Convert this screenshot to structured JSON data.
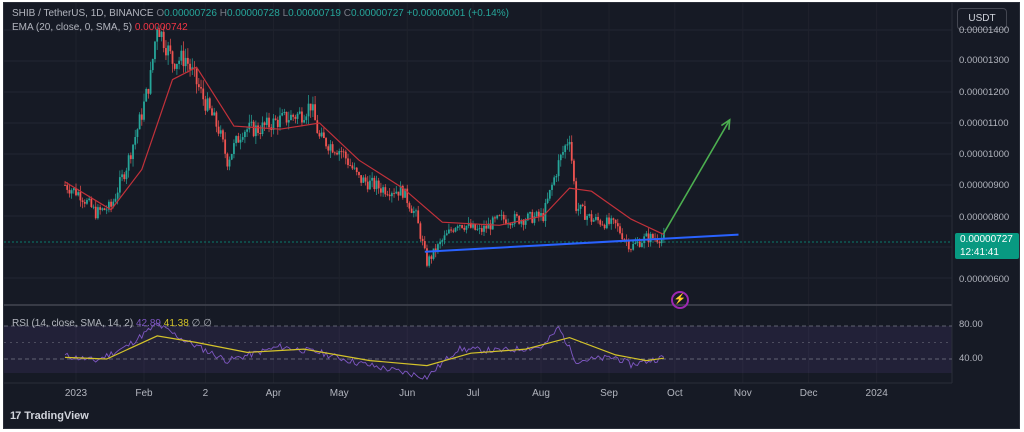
{
  "header": {
    "symbol": "SHIB / TetherUS, 1D, BINANCE",
    "o_label": "O",
    "o": "0.00000726",
    "h_label": "H",
    "h": "0.00000728",
    "l_label": "L",
    "l": "0.00000719",
    "c_label": "C",
    "c": "0.00000727",
    "change": "+0.00000001 (+0.14%)",
    "ema_label": "EMA (20, close, 0, SMA, 5)",
    "ema_value": "0.00000742",
    "currency": "USDT"
  },
  "rsi_legend": {
    "label": "RSI (14, close, SMA, 14, 2)",
    "value1": "42.89",
    "value2": "41.38",
    "extra1": "∅",
    "extra2": "∅"
  },
  "price_badge": {
    "price": "0.00000727",
    "countdown": "12:41:41"
  },
  "logo": "TradingView",
  "colors": {
    "background": "#161a25",
    "up": "#26a69a",
    "down": "#ef5350",
    "ema": "#c2313a",
    "support": "#2962ff",
    "arrow": "#4caf50",
    "rsi_line": "#7e57c2",
    "rsi_ma": "#d4c32a"
  },
  "chart_data": {
    "type": "candlestick",
    "symbol": "SHIB / TetherUS",
    "x_tick_labels": [
      "2023",
      "Feb",
      "2",
      "Apr",
      "May",
      "Jun",
      "Jul",
      "Aug",
      "Sep",
      "Oct",
      "Nov",
      "Dec",
      "2024"
    ],
    "y_tick_labels": [
      "0.00001400",
      "0.00001300",
      "0.00001200",
      "0.00001100",
      "0.00001000",
      "0.00000900",
      "0.00000800",
      "0.00000600"
    ],
    "ylim": [
      5.6e-06,
      1.45e-05
    ],
    "price_path": [
      [
        "2022-12-27",
        9e-06
      ],
      [
        "2023-01-03",
        8.7e-06
      ],
      [
        "2023-01-10",
        8.1e-06
      ],
      [
        "2023-01-17",
        8.3e-06
      ],
      [
        "2023-01-24",
        9.6e-06
      ],
      [
        "2023-01-31",
        1.13e-05
      ],
      [
        "2023-02-04",
        1.25e-05
      ],
      [
        "2023-02-07",
        1.42e-05
      ],
      [
        "2023-02-14",
        1.3e-05
      ],
      [
        "2023-02-20",
        1.31e-05
      ],
      [
        "2023-02-28",
        1.18e-05
      ],
      [
        "2023-03-07",
        1.08e-05
      ],
      [
        "2023-03-11",
        9.8e-06
      ],
      [
        "2023-03-18",
        1.08e-05
      ],
      [
        "2023-03-25",
        1.08e-05
      ],
      [
        "2023-04-04",
        1.11e-05
      ],
      [
        "2023-04-14",
        1.13e-05
      ],
      [
        "2023-04-18",
        1.16e-05
      ],
      [
        "2023-04-22",
        1.05e-05
      ],
      [
        "2023-05-02",
        1.01e-05
      ],
      [
        "2023-05-10",
        9.2e-06
      ],
      [
        "2023-05-20",
        8.9e-06
      ],
      [
        "2023-05-30",
        8.8e-06
      ],
      [
        "2023-06-05",
        8e-06
      ],
      [
        "2023-06-10",
        6.5e-06
      ],
      [
        "2023-06-17",
        7.2e-06
      ],
      [
        "2023-06-24",
        7.8e-06
      ],
      [
        "2023-07-04",
        7.5e-06
      ],
      [
        "2023-07-13",
        7.9e-06
      ],
      [
        "2023-07-23",
        7.9e-06
      ],
      [
        "2023-08-02",
        8e-06
      ],
      [
        "2023-08-09",
        9.7e-06
      ],
      [
        "2023-08-14",
        1.06e-05
      ],
      [
        "2023-08-17",
        8.3e-06
      ],
      [
        "2023-08-24",
        7.9e-06
      ],
      [
        "2023-09-04",
        7.7e-06
      ],
      [
        "2023-09-11",
        7e-06
      ],
      [
        "2023-09-18",
        7.3e-06
      ],
      [
        "2023-09-26",
        7.3e-06
      ]
    ],
    "ema_path": [
      [
        "2022-12-27",
        9.1e-06
      ],
      [
        "2023-01-17",
        8.2e-06
      ],
      [
        "2023-01-31",
        9.5e-06
      ],
      [
        "2023-02-14",
        1.24e-05
      ],
      [
        "2023-02-25",
        1.28e-05
      ],
      [
        "2023-03-14",
        1.09e-05
      ],
      [
        "2023-04-04",
        1.08e-05
      ],
      [
        "2023-04-22",
        1.1e-05
      ],
      [
        "2023-05-10",
        9.8e-06
      ],
      [
        "2023-05-30",
        8.9e-06
      ],
      [
        "2023-06-17",
        7.8e-06
      ],
      [
        "2023-07-13",
        7.7e-06
      ],
      [
        "2023-08-02",
        8e-06
      ],
      [
        "2023-08-14",
        8.9e-06
      ],
      [
        "2023-08-24",
        8.8e-06
      ],
      [
        "2023-09-11",
        7.9e-06
      ],
      [
        "2023-09-26",
        7.4e-06
      ]
    ],
    "support_line": [
      [
        "2023-06-09",
        6.85e-06
      ],
      [
        "2023-10-30",
        7.4e-06
      ]
    ],
    "forecast_arrow": [
      [
        "2023-09-26",
        7.45e-06
      ],
      [
        "2023-10-26",
        1.11e-05
      ]
    ],
    "rsi": {
      "ylim": [
        20,
        90
      ],
      "levels": [
        80,
        40
      ],
      "rsi_path": [
        [
          "2022-12-27",
          44
        ],
        [
          "2023-01-10",
          38
        ],
        [
          "2023-01-24",
          55
        ],
        [
          "2023-02-07",
          82
        ],
        [
          "2023-02-20",
          62
        ],
        [
          "2023-03-11",
          38
        ],
        [
          "2023-04-04",
          55
        ],
        [
          "2023-04-22",
          48
        ],
        [
          "2023-05-10",
          35
        ],
        [
          "2023-06-10",
          18
        ],
        [
          "2023-06-24",
          52
        ],
        [
          "2023-07-13",
          50
        ],
        [
          "2023-08-02",
          55
        ],
        [
          "2023-08-09",
          78
        ],
        [
          "2023-08-17",
          38
        ],
        [
          "2023-09-04",
          42
        ],
        [
          "2023-09-11",
          33
        ],
        [
          "2023-09-26",
          42
        ]
      ],
      "ma_path": [
        [
          "2022-12-27",
          42
        ],
        [
          "2023-01-15",
          40
        ],
        [
          "2023-02-07",
          68
        ],
        [
          "2023-02-25",
          60
        ],
        [
          "2023-03-20",
          48
        ],
        [
          "2023-04-15",
          52
        ],
        [
          "2023-05-15",
          38
        ],
        [
          "2023-06-10",
          32
        ],
        [
          "2023-06-30",
          47
        ],
        [
          "2023-07-25",
          52
        ],
        [
          "2023-08-14",
          66
        ],
        [
          "2023-09-04",
          45
        ],
        [
          "2023-09-18",
          38
        ],
        [
          "2023-09-26",
          41
        ]
      ]
    }
  }
}
